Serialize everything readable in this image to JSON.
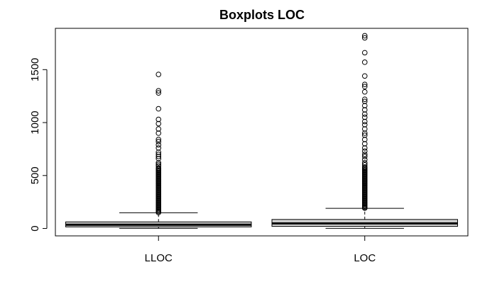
{
  "chart_data": {
    "type": "boxplot",
    "title": "Boxplots LOC",
    "xlabel": "",
    "ylabel": "",
    "ylim": [
      -70,
      1890
    ],
    "yticks": [
      0,
      500,
      1000,
      1500
    ],
    "categories": [
      "LLOC",
      "LOC"
    ],
    "boxes": [
      {
        "name": "LLOC",
        "whisker_low": 1,
        "q1": 15,
        "median": 35,
        "q3": 62,
        "whisker_high": 148,
        "outliers": [
          150,
          160,
          170,
          180,
          190,
          200,
          210,
          220,
          230,
          240,
          250,
          260,
          270,
          280,
          290,
          300,
          310,
          320,
          330,
          340,
          350,
          360,
          370,
          380,
          390,
          400,
          410,
          420,
          430,
          440,
          450,
          460,
          470,
          480,
          490,
          500,
          510,
          520,
          530,
          540,
          550,
          560,
          570,
          590,
          605,
          620,
          660,
          680,
          700,
          720,
          760,
          790,
          820,
          840,
          900,
          940,
          990,
          1030,
          1130,
          1280,
          1300,
          1455
        ]
      },
      {
        "name": "LOC",
        "whisker_low": 1,
        "q1": 20,
        "median": 48,
        "q3": 85,
        "whisker_high": 190,
        "outliers": [
          192,
          200,
          210,
          220,
          230,
          240,
          250,
          260,
          270,
          280,
          290,
          300,
          310,
          320,
          330,
          340,
          350,
          360,
          370,
          380,
          390,
          400,
          410,
          420,
          430,
          440,
          450,
          460,
          470,
          480,
          490,
          500,
          510,
          520,
          530,
          540,
          550,
          560,
          570,
          580,
          600,
          620,
          650,
          680,
          700,
          730,
          760,
          800,
          840,
          880,
          900,
          940,
          980,
          1010,
          1050,
          1080,
          1120,
          1160,
          1200,
          1220,
          1290,
          1340,
          1360,
          1440,
          1570,
          1660,
          1800,
          1820
        ]
      }
    ]
  }
}
